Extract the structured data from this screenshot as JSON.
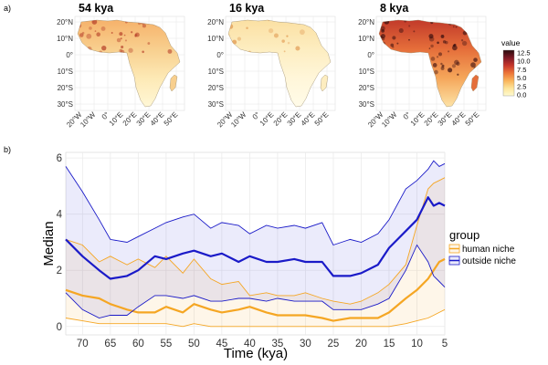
{
  "panel_a": {
    "label": "a)",
    "maps": [
      {
        "title": "54 kya",
        "pattern": "moderate"
      },
      {
        "title": "16 kya",
        "pattern": "low"
      },
      {
        "title": "8 kya",
        "pattern": "high"
      }
    ],
    "lat_labels": [
      "20°N",
      "10°N",
      "0°",
      "10°S",
      "20°S",
      "30°S"
    ],
    "lon_labels": [
      "20°W",
      "10°W",
      "0°",
      "10°E",
      "20°E",
      "30°E",
      "40°E",
      "50°E"
    ],
    "colorbar": {
      "title": "value",
      "ticks": [
        "12.5",
        "10.0",
        "7.5",
        "5.0",
        "2.5",
        "0.0"
      ],
      "colors": [
        "#fffbd0",
        "#fde49a",
        "#f9b35a",
        "#ec7538",
        "#c6362b",
        "#7e1a26",
        "#2a0a0c"
      ]
    }
  },
  "panel_b": {
    "label": "b)",
    "chart_data": {
      "type": "line",
      "xlabel": "Time (kya)",
      "ylabel": "Median",
      "xlim": [
        73,
        5
      ],
      "ylim": [
        -0.3,
        6.2
      ],
      "x_ticks": [
        70,
        65,
        60,
        55,
        50,
        45,
        40,
        35,
        30,
        25,
        20,
        15,
        10,
        5
      ],
      "y_ticks": [
        0,
        2,
        4,
        6
      ],
      "x": [
        73,
        70,
        67,
        65,
        62,
        60,
        57,
        55,
        52,
        50,
        47,
        45,
        42,
        40,
        37,
        35,
        32,
        30,
        27,
        25,
        22,
        20,
        17,
        15,
        12,
        10,
        8,
        7,
        6,
        5
      ],
      "legend_title": "group",
      "series": [
        {
          "name": "human niche",
          "color": "#f5a623",
          "median": [
            1.3,
            1.1,
            1.0,
            0.8,
            0.6,
            0.5,
            0.5,
            0.7,
            0.5,
            0.8,
            0.6,
            0.5,
            0.6,
            0.7,
            0.5,
            0.4,
            0.4,
            0.4,
            0.3,
            0.2,
            0.3,
            0.3,
            0.3,
            0.5,
            1.0,
            1.3,
            1.7,
            2.0,
            2.3,
            2.4
          ],
          "upper": [
            3.1,
            2.9,
            2.3,
            2.5,
            2.2,
            2.4,
            2.1,
            2.5,
            1.9,
            2.4,
            1.7,
            1.5,
            1.6,
            1.1,
            1.2,
            1.1,
            1.1,
            1.2,
            1.0,
            0.9,
            0.8,
            0.9,
            1.2,
            1.5,
            2.2,
            3.6,
            4.9,
            5.1,
            5.2,
            5.3
          ],
          "lower": [
            0.3,
            0.2,
            0.1,
            0.1,
            0.1,
            0.1,
            0.1,
            0.1,
            0.0,
            0.1,
            0.0,
            0.0,
            0.0,
            0.0,
            0.0,
            0.0,
            0.0,
            0.0,
            0.0,
            0.0,
            0.0,
            0.0,
            0.0,
            0.0,
            0.1,
            0.2,
            0.3,
            0.4,
            0.5,
            0.6
          ]
        },
        {
          "name": "outside niche",
          "color": "#1a1ac8",
          "median": [
            3.1,
            2.5,
            2.0,
            1.7,
            1.8,
            2.0,
            2.5,
            2.4,
            2.6,
            2.7,
            2.5,
            2.6,
            2.3,
            2.5,
            2.3,
            2.3,
            2.4,
            2.3,
            2.3,
            1.8,
            1.8,
            1.9,
            2.2,
            2.8,
            3.4,
            3.8,
            4.6,
            4.3,
            4.4,
            4.3
          ],
          "upper": [
            5.7,
            4.8,
            3.8,
            3.1,
            3.0,
            3.2,
            3.5,
            3.7,
            3.9,
            4.0,
            3.5,
            3.7,
            3.6,
            3.3,
            3.6,
            3.5,
            3.6,
            3.5,
            3.7,
            2.9,
            3.1,
            3.0,
            3.3,
            3.8,
            4.9,
            5.2,
            5.6,
            5.9,
            5.7,
            5.8
          ],
          "lower": [
            1.2,
            0.6,
            0.3,
            0.4,
            0.4,
            0.7,
            1.1,
            1.1,
            1.0,
            1.1,
            0.9,
            0.9,
            1.0,
            1.0,
            0.9,
            1.0,
            0.9,
            0.9,
            0.9,
            0.6,
            0.6,
            0.6,
            0.8,
            1.0,
            2.0,
            2.9,
            2.3,
            1.8,
            1.6,
            1.4
          ]
        }
      ]
    }
  }
}
